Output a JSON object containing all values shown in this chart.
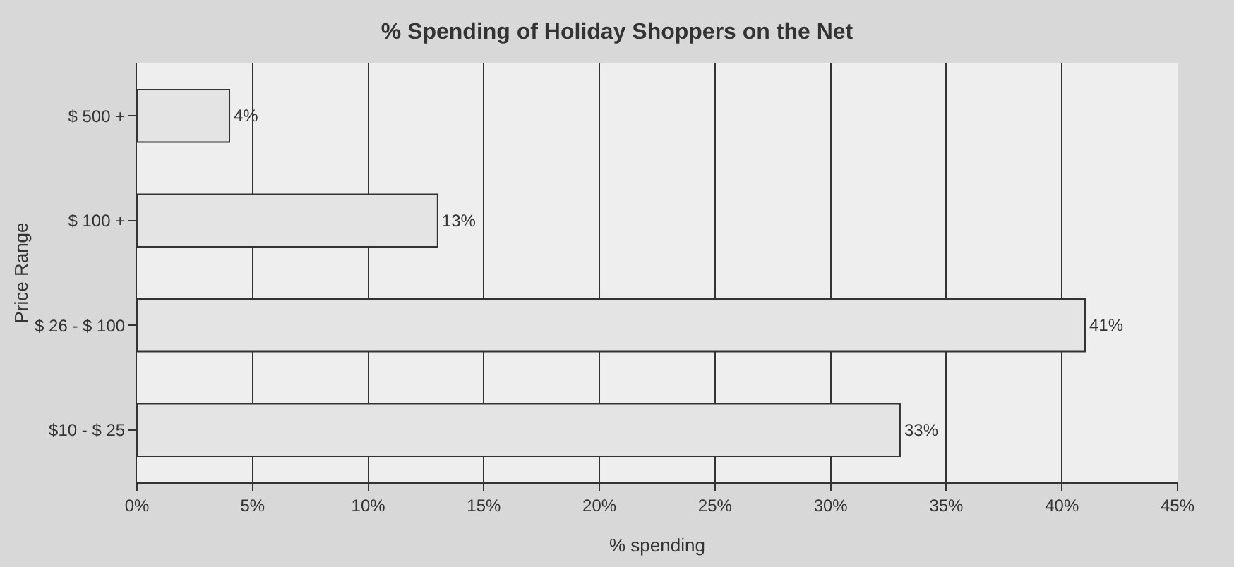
{
  "chart_data": {
    "type": "bar",
    "orientation": "horizontal",
    "title": "% Spending of Holiday Shoppers on the Net",
    "xlabel": "% spending",
    "ylabel": "Price Range",
    "categories": [
      "$ 500 +",
      "$ 100 +",
      "$ 26 - $ 100",
      "$10 - $ 25"
    ],
    "values": [
      4,
      13,
      41,
      33
    ],
    "value_labels": [
      "4%",
      "13%",
      "41%",
      "33%"
    ],
    "color": "#e4e4e4",
    "xlim": [
      0,
      45
    ],
    "xticks": [
      {
        "value": 0,
        "label": "0%"
      },
      {
        "value": 5,
        "label": "5%"
      },
      {
        "value": 10,
        "label": "10%"
      },
      {
        "value": 15,
        "label": "15%"
      },
      {
        "value": 20,
        "label": "20%"
      },
      {
        "value": 25,
        "label": "25%"
      },
      {
        "value": 30,
        "label": "30%"
      },
      {
        "value": 35,
        "label": "35%"
      },
      {
        "value": 40,
        "label": "40%"
      },
      {
        "value": 45,
        "label": "45%"
      }
    ],
    "grid": "x"
  }
}
